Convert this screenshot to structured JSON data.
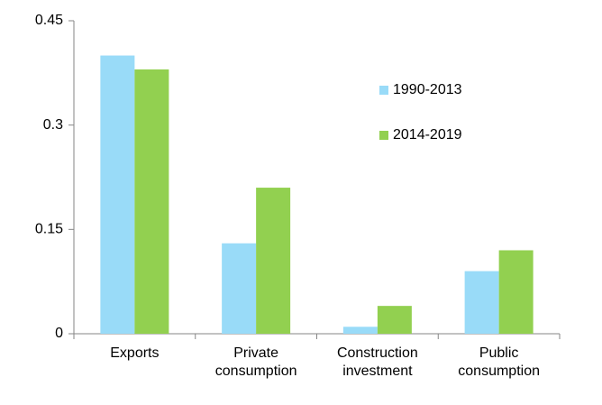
{
  "chart_data": {
    "type": "bar",
    "categories": [
      "Exports",
      "Private consumption",
      "Construction investment",
      "Public consumption"
    ],
    "series": [
      {
        "name": "1990-2013",
        "color": "#99dbf8",
        "values": [
          0.4,
          0.13,
          0.01,
          0.09
        ]
      },
      {
        "name": "2014-2019",
        "color": "#92d050",
        "values": [
          0.38,
          0.21,
          0.04,
          0.12
        ]
      }
    ],
    "ylim": [
      0,
      0.45
    ],
    "yticks": [
      0,
      0.15,
      0.3,
      0.45
    ],
    "grid": false,
    "legend": "right"
  }
}
